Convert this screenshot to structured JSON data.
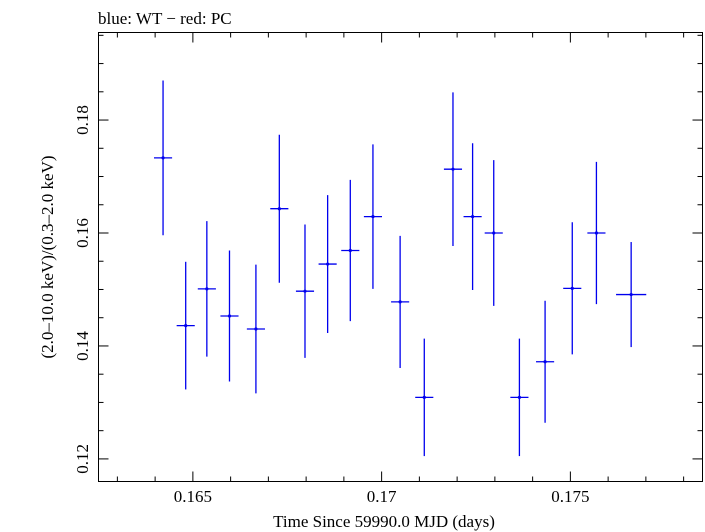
{
  "chart_data": {
    "type": "scatter",
    "title": "blue: WT − red: PC",
    "xlabel": "Time Since 59990.0 MJD (days)",
    "ylabel": "(2.0–10.0 keV)/(0.3–2.0 keV)",
    "xlim": [
      0.1625,
      0.1785
    ],
    "ylim": [
      0.116,
      0.1955
    ],
    "x_ticks": [
      0.165,
      0.17,
      0.175
    ],
    "x_tick_labels": [
      "0.165",
      "0.17",
      "0.175"
    ],
    "y_ticks": [
      0.12,
      0.14,
      0.16,
      0.18
    ],
    "y_tick_labels": [
      "0.12",
      "0.14",
      "0.16",
      "0.18"
    ],
    "x_minor_step": 0.001,
    "y_minor_step": 0.005,
    "grid": false,
    "legend": "none",
    "series": [
      {
        "color": "#0000ee",
        "points": [
          {
            "x": 0.16421,
            "xerr": 0.00024,
            "y": 0.1733,
            "yerr": 0.0137
          },
          {
            "x": 0.16481,
            "xerr": 0.00024,
            "y": 0.1436,
            "yerr": 0.0113
          },
          {
            "x": 0.16537,
            "xerr": 0.00024,
            "y": 0.1501,
            "yerr": 0.012
          },
          {
            "x": 0.16597,
            "xerr": 0.00024,
            "y": 0.1453,
            "yerr": 0.0116
          },
          {
            "x": 0.16667,
            "xerr": 0.00024,
            "y": 0.143,
            "yerr": 0.0114
          },
          {
            "x": 0.16729,
            "xerr": 0.00024,
            "y": 0.1643,
            "yerr": 0.0131
          },
          {
            "x": 0.16797,
            "xerr": 0.00024,
            "y": 0.1497,
            "yerr": 0.0118
          },
          {
            "x": 0.16857,
            "xerr": 0.00024,
            "y": 0.1545,
            "yerr": 0.0122
          },
          {
            "x": 0.16917,
            "xerr": 0.00024,
            "y": 0.1569,
            "yerr": 0.0125
          },
          {
            "x": 0.16977,
            "xerr": 0.00024,
            "y": 0.1629,
            "yerr": 0.0128
          },
          {
            "x": 0.17049,
            "xerr": 0.00024,
            "y": 0.1478,
            "yerr": 0.0117
          },
          {
            "x": 0.17113,
            "xerr": 0.00024,
            "y": 0.1309,
            "yerr": 0.0104
          },
          {
            "x": 0.17189,
            "xerr": 0.00024,
            "y": 0.1713,
            "yerr": 0.0136
          },
          {
            "x": 0.17241,
            "xerr": 0.00024,
            "y": 0.1629,
            "yerr": 0.013
          },
          {
            "x": 0.17297,
            "xerr": 0.00024,
            "y": 0.16,
            "yerr": 0.0129
          },
          {
            "x": 0.17365,
            "xerr": 0.00024,
            "y": 0.1309,
            "yerr": 0.0104
          },
          {
            "x": 0.17433,
            "xerr": 0.00024,
            "y": 0.1372,
            "yerr": 0.0108
          },
          {
            "x": 0.17505,
            "xerr": 0.00024,
            "y": 0.1502,
            "yerr": 0.0117
          },
          {
            "x": 0.17569,
            "xerr": 0.00024,
            "y": 0.16,
            "yerr": 0.0126
          },
          {
            "x": 0.17661,
            "xerr": 0.0004,
            "y": 0.1491,
            "yerr": 0.0093
          }
        ]
      }
    ]
  }
}
